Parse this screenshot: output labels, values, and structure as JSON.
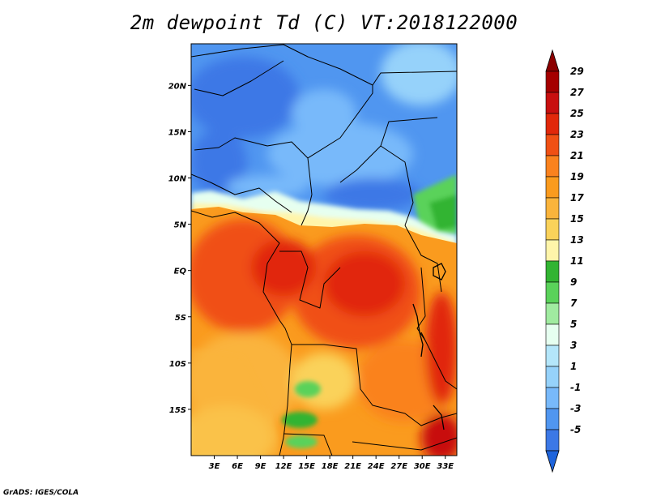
{
  "title": "2m dewpoint Td (C) VT:2018122000",
  "credit": "GrADS: IGES/COLA",
  "map": {
    "lon_range": [
      0,
      34.5
    ],
    "lat_range": [
      -20,
      24.5
    ],
    "lat_ticks": [
      {
        "value": 20,
        "label": "20N"
      },
      {
        "value": 15,
        "label": "15N"
      },
      {
        "value": 10,
        "label": "10N"
      },
      {
        "value": 5,
        "label": "5N"
      },
      {
        "value": 0,
        "label": "EQ"
      },
      {
        "value": -5,
        "label": "5S"
      },
      {
        "value": -10,
        "label": "10S"
      },
      {
        "value": -15,
        "label": "15S"
      }
    ],
    "lon_ticks": [
      {
        "value": 3,
        "label": "3E"
      },
      {
        "value": 6,
        "label": "6E"
      },
      {
        "value": 9,
        "label": "9E"
      },
      {
        "value": 12,
        "label": "12E"
      },
      {
        "value": 15,
        "label": "15E"
      },
      {
        "value": 18,
        "label": "18E"
      },
      {
        "value": 21,
        "label": "21E"
      },
      {
        "value": 24,
        "label": "24E"
      },
      {
        "value": 27,
        "label": "27E"
      },
      {
        "value": 30,
        "label": "30E"
      },
      {
        "value": 33,
        "label": "33E"
      }
    ]
  },
  "colorbar": {
    "levels": [
      {
        "label": "29",
        "color": "#a50000"
      },
      {
        "label": "27",
        "color": "#c80f0f"
      },
      {
        "label": "25",
        "color": "#e1280a"
      },
      {
        "label": "23",
        "color": "#f05014"
      },
      {
        "label": "21",
        "color": "#fa821e"
      },
      {
        "label": "19",
        "color": "#fa9b1e"
      },
      {
        "label": "17",
        "color": "#fab43c"
      },
      {
        "label": "15",
        "color": "#fad25a"
      },
      {
        "label": "13",
        "color": "#fff5aa"
      },
      {
        "label": "11",
        "color": "#32b432"
      },
      {
        "label": "9",
        "color": "#5ad25a"
      },
      {
        "label": "7",
        "color": "#a0eba0"
      },
      {
        "label": "5",
        "color": "#e6fff0"
      },
      {
        "label": "3",
        "color": "#b4e6fa"
      },
      {
        "label": "1",
        "color": "#96d2fa"
      },
      {
        "label": "-1",
        "color": "#78b9fa"
      },
      {
        "label": "-3",
        "color": "#5096f0"
      },
      {
        "label": "-5",
        "color": "#3c78e6"
      }
    ],
    "top_color": "#8c0000",
    "bottom_color": "#1e64dc"
  }
}
